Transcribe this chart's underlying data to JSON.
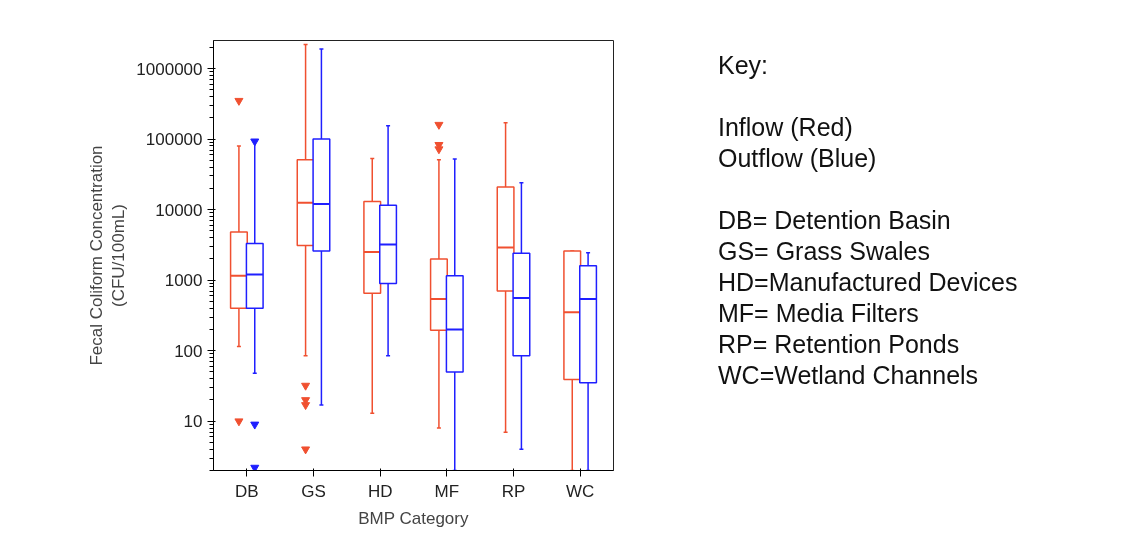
{
  "chart_data": {
    "type": "box",
    "xlabel": "BMP Category",
    "ylabel": "Fecal Coliform Concentration\n(CFU/100mL)",
    "categories": [
      "DB",
      "GS",
      "HD",
      "MF",
      "RP",
      "WC"
    ],
    "log": "y",
    "ylim": [
      2,
      2500000
    ],
    "yticks": [
      10,
      100,
      1000,
      10000,
      100000,
      1000000
    ],
    "grid": false,
    "series": [
      {
        "color": "#f05030",
        "boxes": [
          {
            "low": 115,
            "q1": 400,
            "median": 1150,
            "q3": 4800,
            "high": 80000,
            "outliers": [
              350000,
              10
            ]
          },
          {
            "low": 85,
            "q1": 3100,
            "median": 12500,
            "q3": 51000,
            "high": 2200000,
            "outliers": [
              32,
              20,
              17,
              4
            ]
          },
          {
            "low": 13,
            "q1": 650,
            "median": 2500,
            "q3": 13000,
            "high": 53000
          },
          {
            "low": 8,
            "q1": 195,
            "median": 540,
            "q3": 2000,
            "high": 51000,
            "outliers": [
              160000,
              83000,
              72000
            ]
          },
          {
            "low": 7,
            "q1": 700,
            "median": 2900,
            "q3": 21000,
            "high": 170000
          },
          {
            "low": 2,
            "q1": 39,
            "median": 350,
            "q3": 2600,
            "high": 2600
          }
        ]
      },
      {
        "color": "#1f1fff",
        "boxes": [
          {
            "low": 48,
            "q1": 400,
            "median": 1200,
            "q3": 3300,
            "high": 93000,
            "outliers": [
              93000,
              9,
              2.2
            ]
          },
          {
            "low": 17,
            "q1": 2600,
            "median": 12000,
            "q3": 100000,
            "high": 1900000
          },
          {
            "low": 85,
            "q1": 900,
            "median": 3200,
            "q3": 11500,
            "high": 155000
          },
          {
            "low": 2,
            "q1": 50,
            "median": 200,
            "q3": 1150,
            "high": 52000
          },
          {
            "low": 4,
            "q1": 85,
            "median": 560,
            "q3": 2400,
            "high": 24000
          },
          {
            "low": 2,
            "q1": 35,
            "median": 540,
            "q3": 1600,
            "high": 2450
          }
        ]
      }
    ],
    "annotations": [
      "Key:",
      "Inflow (Red)",
      "Outflow (Blue)",
      "DB= Detention Basin",
      "GS= Grass Swales",
      "HD=Manufactured Devices",
      "MF= Media Filters",
      "RP= Retention Ponds",
      "WC=Wetland Channels"
    ]
  }
}
